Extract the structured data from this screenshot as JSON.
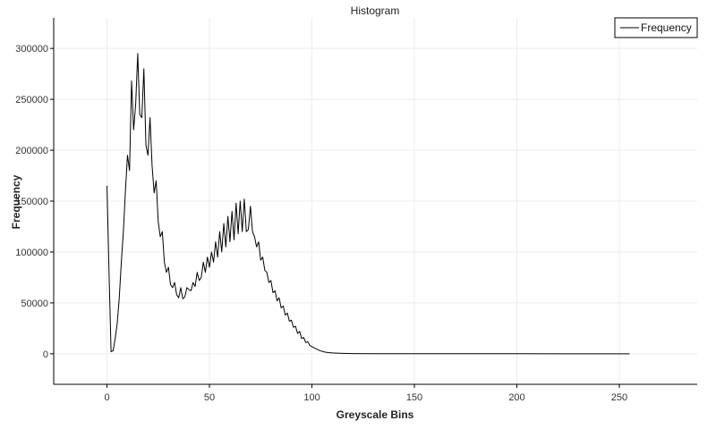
{
  "chart_data": {
    "type": "line",
    "title": "Histogram",
    "xlabel": "Greyscale Bins",
    "ylabel": "Frequency",
    "xlim": [
      -26,
      288
    ],
    "ylim": [
      -30000,
      330000
    ],
    "xticks": [
      0,
      50,
      100,
      150,
      200,
      250
    ],
    "yticks": [
      0,
      50000,
      100000,
      150000,
      200000,
      250000,
      300000
    ],
    "xtick_labels": [
      "0",
      "50",
      "100",
      "150",
      "200",
      "250"
    ],
    "ytick_labels": [
      "0",
      "50000",
      "100000",
      "150000",
      "200000",
      "250000",
      "300000"
    ],
    "grid": true,
    "legend": {
      "position": "top-right",
      "entries": [
        "Frequency"
      ]
    },
    "series": [
      {
        "name": "Frequency",
        "color": "#000000",
        "points": [
          [
            0,
            165000
          ],
          [
            1,
            80000
          ],
          [
            2,
            2000
          ],
          [
            3,
            3000
          ],
          [
            4,
            15000
          ],
          [
            5,
            30000
          ],
          [
            6,
            55000
          ],
          [
            7,
            90000
          ],
          [
            8,
            120000
          ],
          [
            9,
            160000
          ],
          [
            10,
            195000
          ],
          [
            11,
            180000
          ],
          [
            12,
            268000
          ],
          [
            13,
            220000
          ],
          [
            14,
            245000
          ],
          [
            15,
            295000
          ],
          [
            16,
            235000
          ],
          [
            17,
            232000
          ],
          [
            18,
            280000
          ],
          [
            19,
            205000
          ],
          [
            20,
            195000
          ],
          [
            21,
            232000
          ],
          [
            22,
            185000
          ],
          [
            23,
            158000
          ],
          [
            24,
            170000
          ],
          [
            25,
            130000
          ],
          [
            26,
            115000
          ],
          [
            27,
            120000
          ],
          [
            28,
            90000
          ],
          [
            29,
            80000
          ],
          [
            30,
            85000
          ],
          [
            31,
            68000
          ],
          [
            32,
            65000
          ],
          [
            33,
            70000
          ],
          [
            34,
            58000
          ],
          [
            35,
            55000
          ],
          [
            36,
            65000
          ],
          [
            37,
            54000
          ],
          [
            38,
            56000
          ],
          [
            39,
            65000
          ],
          [
            40,
            63000
          ],
          [
            41,
            62000
          ],
          [
            42,
            70000
          ],
          [
            43,
            66000
          ],
          [
            44,
            80000
          ],
          [
            45,
            72000
          ],
          [
            46,
            75000
          ],
          [
            47,
            90000
          ],
          [
            48,
            80000
          ],
          [
            49,
            95000
          ],
          [
            50,
            85000
          ],
          [
            51,
            100000
          ],
          [
            52,
            90000
          ],
          [
            53,
            110000
          ],
          [
            54,
            95000
          ],
          [
            55,
            120000
          ],
          [
            56,
            100000
          ],
          [
            57,
            128000
          ],
          [
            58,
            105000
          ],
          [
            59,
            135000
          ],
          [
            60,
            110000
          ],
          [
            61,
            140000
          ],
          [
            62,
            112000
          ],
          [
            63,
            148000
          ],
          [
            64,
            118000
          ],
          [
            65,
            150000
          ],
          [
            66,
            120000
          ],
          [
            67,
            152000
          ],
          [
            68,
            120000
          ],
          [
            69,
            122000
          ],
          [
            70,
            145000
          ],
          [
            71,
            120000
          ],
          [
            72,
            115000
          ],
          [
            73,
            105000
          ],
          [
            74,
            110000
          ],
          [
            75,
            92000
          ],
          [
            76,
            95000
          ],
          [
            77,
            82000
          ],
          [
            78,
            80000
          ],
          [
            79,
            70000
          ],
          [
            80,
            72000
          ],
          [
            81,
            60000
          ],
          [
            82,
            62000
          ],
          [
            83,
            52000
          ],
          [
            84,
            55000
          ],
          [
            85,
            45000
          ],
          [
            86,
            47000
          ],
          [
            87,
            38000
          ],
          [
            88,
            40000
          ],
          [
            89,
            32000
          ],
          [
            90,
            33000
          ],
          [
            91,
            26000
          ],
          [
            92,
            27000
          ],
          [
            93,
            20000
          ],
          [
            94,
            22000
          ],
          [
            95,
            15000
          ],
          [
            96,
            16000
          ],
          [
            97,
            11000
          ],
          [
            98,
            12000
          ],
          [
            99,
            8000
          ],
          [
            100,
            7000
          ],
          [
            102,
            5000
          ],
          [
            104,
            3000
          ],
          [
            106,
            1800
          ],
          [
            108,
            1200
          ],
          [
            110,
            800
          ],
          [
            115,
            400
          ],
          [
            120,
            200
          ],
          [
            130,
            100
          ],
          [
            150,
            50
          ],
          [
            200,
            20
          ],
          [
            255,
            0
          ]
        ]
      }
    ]
  }
}
